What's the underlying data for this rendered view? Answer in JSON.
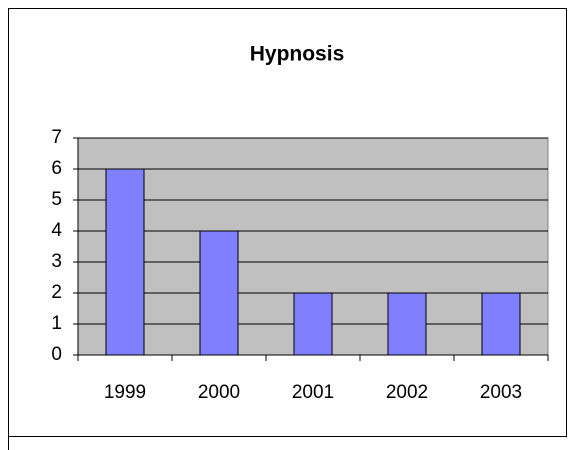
{
  "chart_data": {
    "type": "bar",
    "title": "Hypnosis",
    "categories": [
      "1999",
      "2000",
      "2001",
      "2002",
      "2003"
    ],
    "values": [
      6,
      4,
      2,
      2,
      2
    ],
    "color": "#8080ff",
    "ylim": [
      0,
      7
    ],
    "yticks": [
      0,
      1,
      2,
      3,
      4,
      5,
      6,
      7
    ],
    "grid": true
  }
}
